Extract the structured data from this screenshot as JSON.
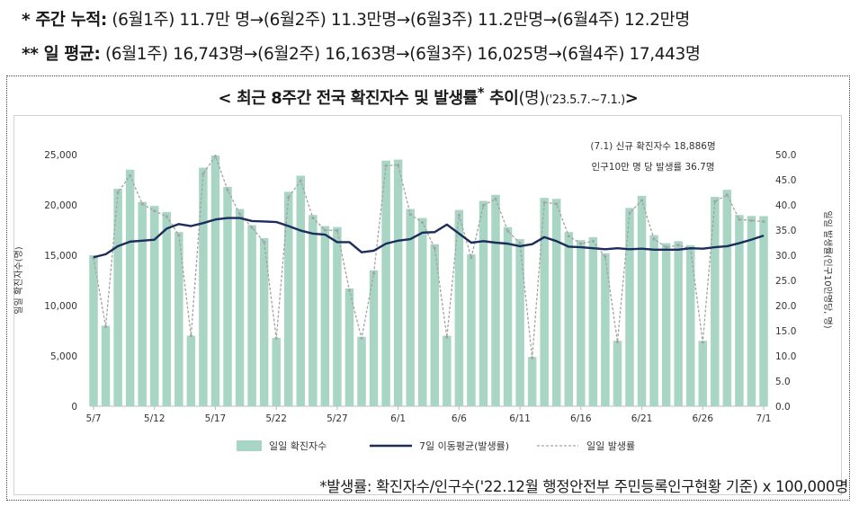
{
  "summary": {
    "weekly_prefix": "* 주간 누적:",
    "weekly_values": "(6월1주) 11.7만 명→(6월2주) 11.3만명→(6월3주) 11.2만명→(6월4주) 12.2만명",
    "daily_prefix": "** 일 평균:",
    "daily_values": "(6월1주) 16,743명→(6월2주) 16,163명→(6월3주) 16,025명→(6월4주) 17,443명"
  },
  "chart_title": {
    "main": "< 최근 8주간 전국 확진자수 및 발생률",
    "sup": "*",
    "main2": " 추이",
    "unit": "(명)",
    "period": "('23.5.7.~7.1.)",
    "close": ">"
  },
  "annotation": {
    "line1": "(7.1) 신규 확진자수 18,886명",
    "line2": "인구10만 명 당 발생률 36.7명"
  },
  "footnote": "*발생률: 확진자수/인구수('22.12월 행정안전부 주민등록인구현황 기준) x 100,000명",
  "colors": {
    "bar": "#a8d5c4",
    "moving_avg": "#1b2d5c",
    "daily_rate": "#a3a3a3"
  },
  "chart_data": {
    "type": "bar",
    "x": [
      "5/7",
      "5/8",
      "5/9",
      "5/10",
      "5/11",
      "5/12",
      "5/13",
      "5/14",
      "5/15",
      "5/16",
      "5/17",
      "5/18",
      "5/19",
      "5/20",
      "5/21",
      "5/22",
      "5/23",
      "5/24",
      "5/25",
      "5/26",
      "5/27",
      "5/28",
      "5/29",
      "5/30",
      "5/31",
      "6/1",
      "6/2",
      "6/3",
      "6/4",
      "6/5",
      "6/6",
      "6/7",
      "6/8",
      "6/9",
      "6/10",
      "6/11",
      "6/12",
      "6/13",
      "6/14",
      "6/15",
      "6/16",
      "6/17",
      "6/18",
      "6/19",
      "6/20",
      "6/21",
      "6/22",
      "6/23",
      "6/24",
      "6/25",
      "6/26",
      "6/27",
      "6/28",
      "6/29",
      "6/30",
      "7/1"
    ],
    "tick_labels": [
      "5/7",
      "5/12",
      "5/17",
      "5/22",
      "5/27",
      "6/1",
      "6/6",
      "6/11",
      "6/16",
      "6/21",
      "6/26",
      "7/1"
    ],
    "y_left": {
      "label": "일일 확진자수(명)",
      "lim": [
        0,
        25000
      ],
      "ticks": [
        0,
        5000,
        10000,
        15000,
        20000,
        25000
      ],
      "tick_labels": [
        "0",
        "5,000",
        "10,000",
        "15,000",
        "20,000",
        "25,000"
      ]
    },
    "y_right": {
      "label": "일일 발생률(인구10만명당, 명)",
      "lim": [
        0,
        50
      ],
      "ticks": [
        0,
        5,
        10,
        15,
        20,
        25,
        30,
        35,
        40,
        45,
        50
      ],
      "tick_labels": [
        "0.0",
        "5.0",
        "10.0",
        "15.0",
        "20.0",
        "25.0",
        "30.0",
        "35.0",
        "40.0",
        "45.0",
        "50.0"
      ]
    },
    "series": [
      {
        "name": "일일 확진자수",
        "type": "bar",
        "axis": "left",
        "values": [
          15000,
          8000,
          21600,
          23500,
          20300,
          19900,
          19300,
          17300,
          7000,
          23700,
          24900,
          21800,
          19600,
          18000,
          16700,
          6800,
          21300,
          22900,
          19000,
          17900,
          17800,
          11700,
          6900,
          13500,
          24400,
          24500,
          19600,
          18700,
          16100,
          7000,
          19500,
          15100,
          20400,
          21000,
          17800,
          16600,
          4900,
          20700,
          20600,
          17300,
          16500,
          16800,
          15200,
          6500,
          19700,
          20900,
          17000,
          16200,
          16400,
          16000,
          6500,
          20800,
          21500,
          19000,
          18900,
          18886
        ]
      },
      {
        "name": "7일 이동평균(발생률)",
        "type": "line",
        "axis": "right",
        "values": [
          29.6,
          30.2,
          31.8,
          32.7,
          32.9,
          33.1,
          35.3,
          36.2,
          35.8,
          36.4,
          37.1,
          37.4,
          37.4,
          36.8,
          36.7,
          36.6,
          35.8,
          34.9,
          34.3,
          34.1,
          32.6,
          32.6,
          30.6,
          30.9,
          32.3,
          32.9,
          33.2,
          34.5,
          34.6,
          36.1,
          34.3,
          32.5,
          32.8,
          32.5,
          32.3,
          31.8,
          32.2,
          33.6,
          32.8,
          31.7,
          31.6,
          31.4,
          31.2,
          31.4,
          31.2,
          31.3,
          31.1,
          31.1,
          31.1,
          31.4,
          31.3,
          31.6,
          31.8,
          32.4,
          33.1,
          33.9
        ]
      },
      {
        "name": "일일 발생률",
        "type": "line",
        "axis": "right",
        "dash": true,
        "values": [
          29.5,
          15.8,
          42.5,
          45.8,
          40.2,
          38.8,
          37.7,
          34.0,
          14.0,
          46.2,
          49.7,
          43.0,
          38.2,
          35.5,
          32.6,
          13.5,
          41.5,
          44.8,
          37.4,
          35.0,
          34.9,
          23.0,
          13.5,
          26.4,
          47.8,
          47.9,
          38.1,
          36.5,
          31.4,
          13.7,
          38.0,
          29.5,
          39.9,
          41.2,
          34.8,
          32.4,
          9.6,
          40.5,
          40.2,
          33.8,
          32.3,
          32.8,
          29.7,
          12.8,
          38.4,
          40.9,
          33.2,
          31.6,
          32.0,
          31.3,
          12.7,
          40.7,
          42.0,
          37.1,
          36.9,
          36.7
        ]
      }
    ],
    "legend": {
      "position": "bottom"
    }
  }
}
